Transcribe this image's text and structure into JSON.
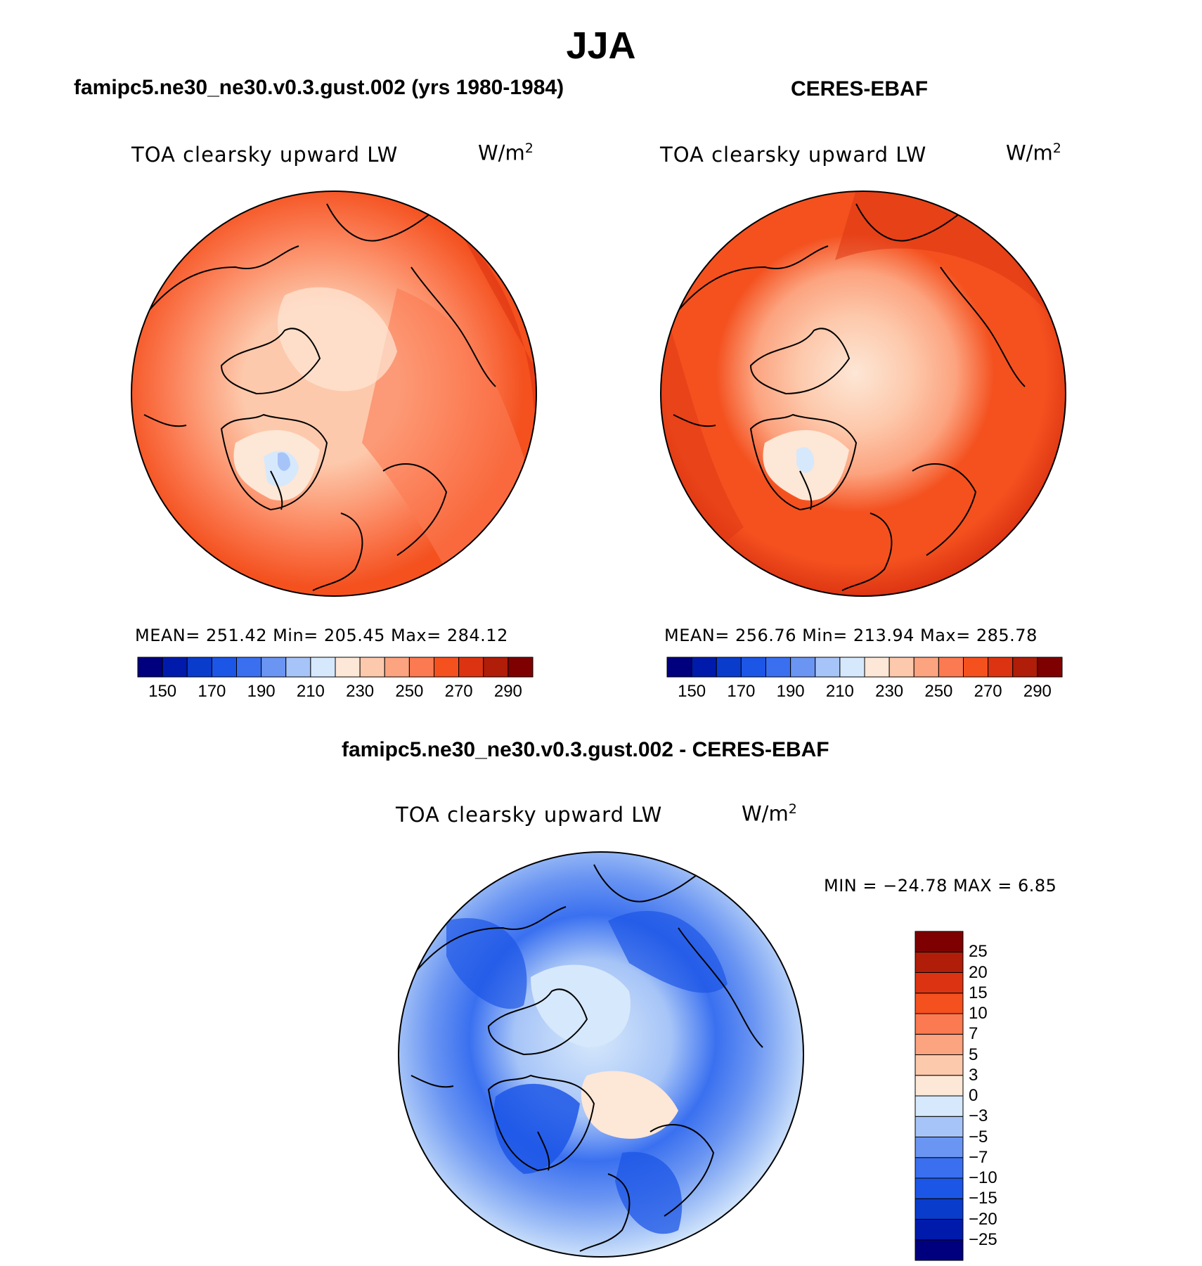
{
  "season_title": "JJA",
  "panels": [
    {
      "case_title": "famipc5.ne30_ne30.v0.3.gust.002 (yrs 1980-1984)",
      "variable": "TOA clearsky upward LW",
      "units_base": "W/m",
      "units_exp": "2",
      "stats": "MEAN= 251.42   Min= 205.45   Max= 284.12"
    },
    {
      "case_title": "CERES-EBAF",
      "variable": "TOA clearsky upward LW",
      "units_base": "W/m",
      "units_exp": "2",
      "stats": "MEAN= 256.76   Min= 213.94   Max= 285.78"
    }
  ],
  "diff_panel": {
    "case_title": "famipc5.ne30_ne30.v0.3.gust.002 - CERES-EBAF",
    "variable": "TOA clearsky upward LW",
    "units_base": "W/m",
    "units_exp": "2",
    "stats": "MIN = −24.78 MAX =    6.85"
  },
  "colorbars": {
    "absolute": {
      "colors": [
        "#00007f",
        "#001bab",
        "#0a3ccc",
        "#1c56e6",
        "#3a70f0",
        "#6a95f2",
        "#a6c4f7",
        "#d6e8fb",
        "#fde7d6",
        "#fdc9ac",
        "#fca37f",
        "#fb7a51",
        "#f4511f",
        "#dc3412",
        "#b01d08",
        "#7f0000"
      ],
      "tick_labels": [
        "150",
        "170",
        "190",
        "210",
        "230",
        "250",
        "270",
        "290"
      ]
    },
    "difference": {
      "colors": [
        "#00007f",
        "#001bab",
        "#0a3ccc",
        "#1c56e6",
        "#3a70f0",
        "#6a95f2",
        "#a6c4f7",
        "#d6e8fb",
        "#fde7d6",
        "#fdc9ac",
        "#fca37f",
        "#fb7a51",
        "#f4511f",
        "#dc3412",
        "#b01d08",
        "#7f0000"
      ],
      "tick_labels": [
        "−25",
        "−20",
        "−15",
        "−10",
        "−7",
        "−5",
        "−3",
        "0",
        "3",
        "5",
        "7",
        "10",
        "15",
        "20",
        "25"
      ]
    }
  }
}
